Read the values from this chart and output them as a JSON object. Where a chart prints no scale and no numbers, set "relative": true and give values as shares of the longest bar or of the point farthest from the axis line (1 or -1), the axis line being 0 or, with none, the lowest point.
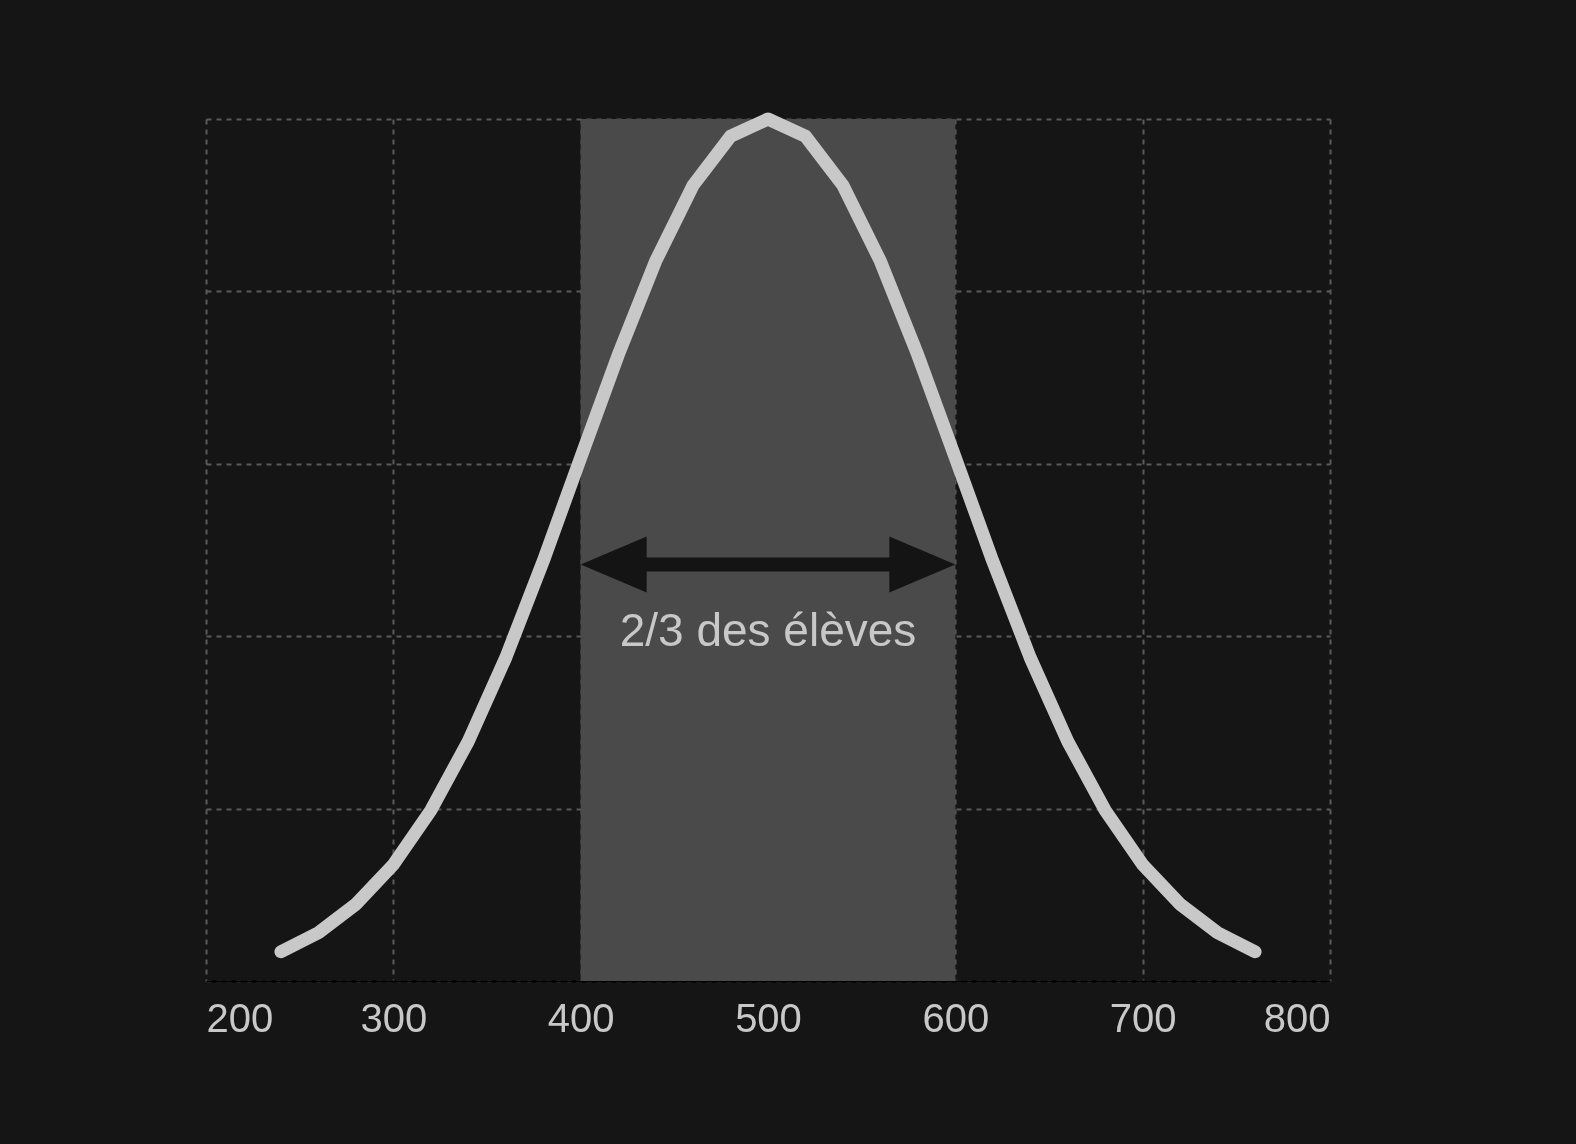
{
  "chart_data": {
    "type": "line",
    "relative": true,
    "x": [
      240,
      260,
      280,
      300,
      320,
      340,
      360,
      380,
      400,
      420,
      440,
      460,
      480,
      500,
      520,
      540,
      560,
      580,
      600,
      620,
      640,
      660,
      680,
      700,
      720,
      740,
      760
    ],
    "series": [
      {
        "color": "#c8c8c8",
        "values": [
          0.034,
          0.056,
          0.089,
          0.135,
          0.198,
          0.278,
          0.375,
          0.487,
          0.607,
          0.726,
          0.835,
          0.923,
          0.98,
          1,
          0.98,
          0.923,
          0.835,
          0.726,
          0.607,
          0.487,
          0.375,
          0.278,
          0.198,
          0.135,
          0.089,
          0.056,
          0.034
        ]
      }
    ],
    "xlim": [
      200,
      800
    ],
    "xticks": [
      200,
      300,
      400,
      500,
      600,
      700,
      800
    ],
    "grid": true,
    "marker": "none",
    "line_style": "solid",
    "bands": [
      {
        "axis": "x",
        "from": 400,
        "to": 600,
        "color": "#4a4a4a"
      }
    ],
    "annotations": [
      "2/3 des élèves"
    ]
  }
}
